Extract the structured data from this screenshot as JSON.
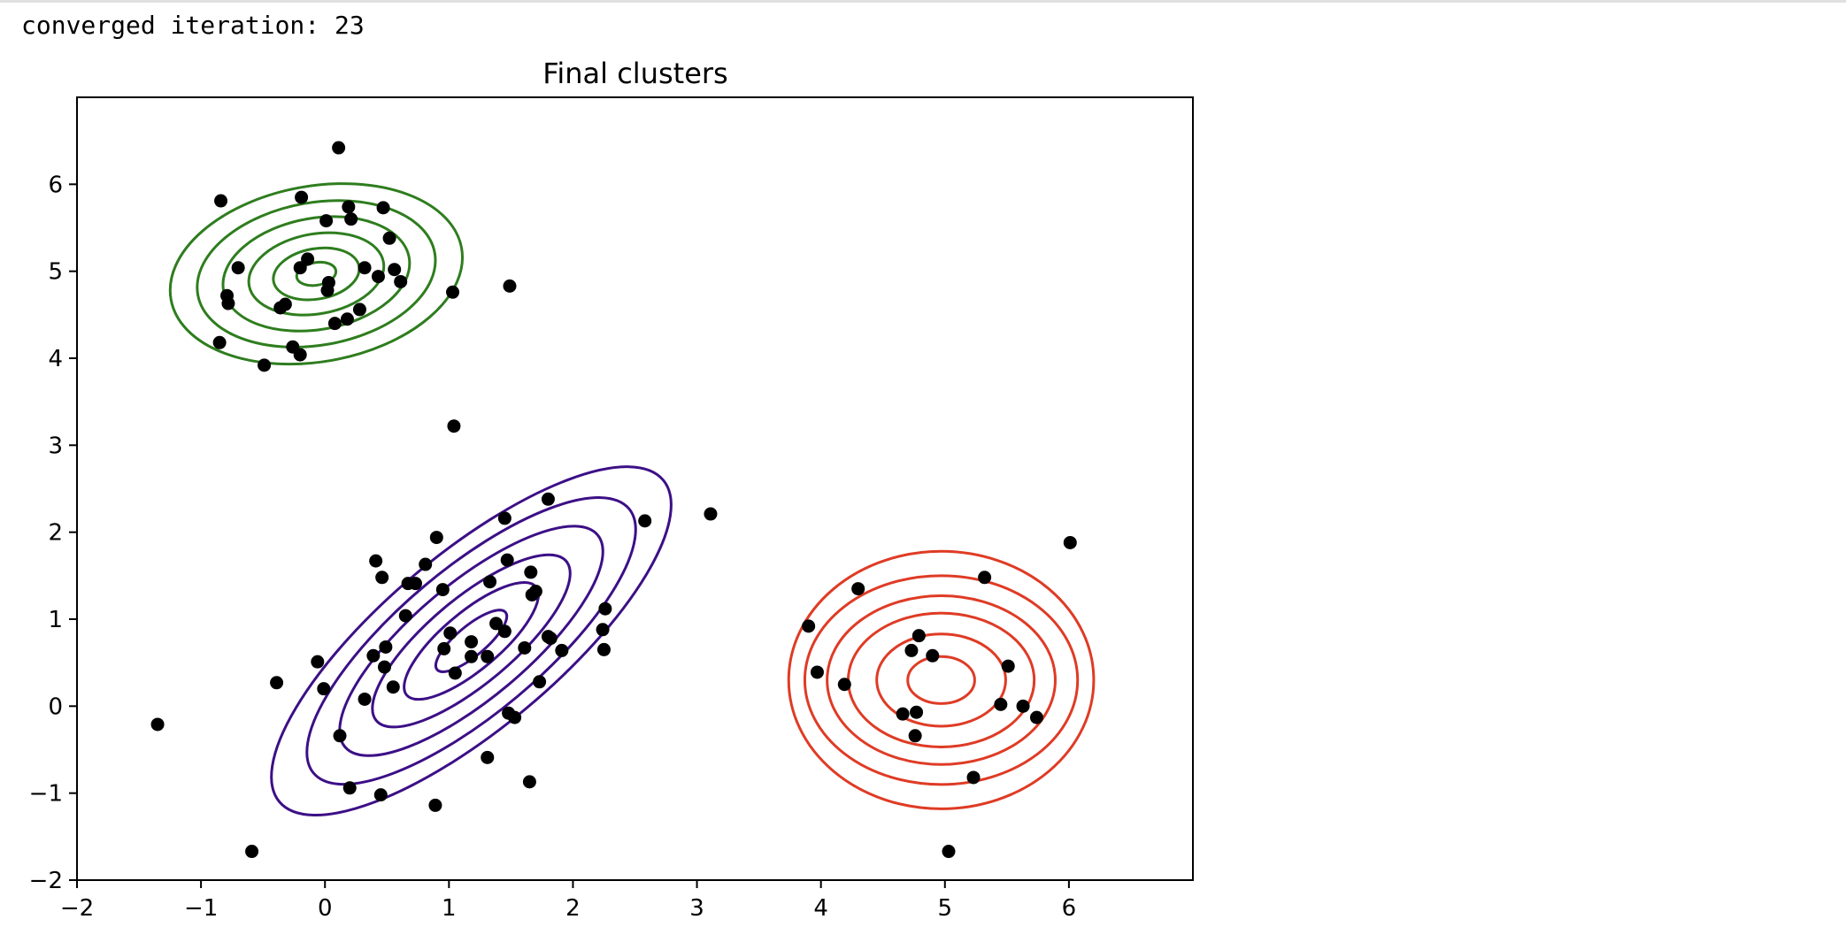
{
  "output": {
    "text": "converged iteration: 23"
  },
  "chart_data": {
    "type": "scatter",
    "title": "Final clusters",
    "xlabel": "",
    "ylabel": "",
    "xlim": [
      -2,
      7
    ],
    "ylim": [
      -2,
      7
    ],
    "xticks": [
      -2,
      -1,
      0,
      1,
      2,
      3,
      4,
      5,
      6
    ],
    "yticks": [
      -2,
      -1,
      0,
      1,
      2,
      3,
      4,
      5,
      6
    ],
    "xtick_labels": [
      "−2",
      "−1",
      "0",
      "1",
      "2",
      "3",
      "4",
      "5",
      "6"
    ],
    "ytick_labels": [
      "−2",
      "−1",
      "0",
      "1",
      "2",
      "3",
      "4",
      "5",
      "6"
    ],
    "grid": false,
    "points": [
      [
        0.11,
        6.42
      ],
      [
        -0.84,
        5.81
      ],
      [
        -0.19,
        5.85
      ],
      [
        0.19,
        5.74
      ],
      [
        0.47,
        5.73
      ],
      [
        0.01,
        5.58
      ],
      [
        0.21,
        5.6
      ],
      [
        0.52,
        5.38
      ],
      [
        -0.7,
        5.04
      ],
      [
        -0.14,
        5.14
      ],
      [
        -0.2,
        5.04
      ],
      [
        0.32,
        5.04
      ],
      [
        0.56,
        5.02
      ],
      [
        0.43,
        4.94
      ],
      [
        0.61,
        4.88
      ],
      [
        0.03,
        4.87
      ],
      [
        0.02,
        4.78
      ],
      [
        -0.79,
        4.72
      ],
      [
        -0.78,
        4.63
      ],
      [
        -0.32,
        4.62
      ],
      [
        -0.36,
        4.58
      ],
      [
        0.28,
        4.56
      ],
      [
        0.18,
        4.45
      ],
      [
        0.08,
        4.4
      ],
      [
        1.03,
        4.76
      ],
      [
        1.49,
        4.83
      ],
      [
        -0.85,
        4.18
      ],
      [
        -0.26,
        4.13
      ],
      [
        -0.2,
        4.04
      ],
      [
        -0.49,
        3.92
      ],
      [
        1.04,
        3.22
      ],
      [
        3.11,
        2.21
      ],
      [
        1.8,
        2.38
      ],
      [
        2.58,
        2.13
      ],
      [
        1.45,
        2.16
      ],
      [
        0.9,
        1.94
      ],
      [
        0.41,
        1.67
      ],
      [
        1.47,
        1.68
      ],
      [
        0.81,
        1.63
      ],
      [
        1.66,
        1.54
      ],
      [
        0.46,
        1.48
      ],
      [
        0.67,
        1.41
      ],
      [
        0.73,
        1.41
      ],
      [
        1.33,
        1.43
      ],
      [
        0.95,
        1.34
      ],
      [
        1.7,
        1.32
      ],
      [
        1.67,
        1.28
      ],
      [
        2.26,
        1.12
      ],
      [
        0.65,
        1.04
      ],
      [
        1.38,
        0.95
      ],
      [
        1.45,
        0.86
      ],
      [
        2.24,
        0.88
      ],
      [
        1.01,
        0.84
      ],
      [
        1.8,
        0.8
      ],
      [
        1.82,
        0.78
      ],
      [
        1.18,
        0.74
      ],
      [
        0.49,
        0.68
      ],
      [
        0.96,
        0.66
      ],
      [
        1.61,
        0.67
      ],
      [
        1.91,
        0.64
      ],
      [
        2.25,
        0.65
      ],
      [
        0.39,
        0.58
      ],
      [
        1.18,
        0.57
      ],
      [
        1.31,
        0.57
      ],
      [
        -0.06,
        0.51
      ],
      [
        0.48,
        0.45
      ],
      [
        1.05,
        0.38
      ],
      [
        -0.39,
        0.27
      ],
      [
        1.73,
        0.28
      ],
      [
        0.55,
        0.22
      ],
      [
        -0.01,
        0.2
      ],
      [
        0.32,
        0.08
      ],
      [
        1.48,
        -0.08
      ],
      [
        1.53,
        -0.13
      ],
      [
        0.12,
        -0.34
      ],
      [
        1.31,
        -0.59
      ],
      [
        1.65,
        -0.87
      ],
      [
        0.2,
        -0.94
      ],
      [
        0.45,
        -1.02
      ],
      [
        0.89,
        -1.14
      ],
      [
        -0.59,
        -1.67
      ],
      [
        -1.35,
        -0.21
      ],
      [
        6.01,
        1.88
      ],
      [
        5.32,
        1.48
      ],
      [
        4.3,
        1.35
      ],
      [
        3.9,
        0.92
      ],
      [
        4.79,
        0.81
      ],
      [
        4.73,
        0.64
      ],
      [
        4.9,
        0.58
      ],
      [
        5.51,
        0.46
      ],
      [
        3.97,
        0.39
      ],
      [
        4.19,
        0.25
      ],
      [
        5.45,
        0.02
      ],
      [
        5.63,
        0.0
      ],
      [
        4.66,
        -0.09
      ],
      [
        4.77,
        -0.07
      ],
      [
        5.74,
        -0.13
      ],
      [
        4.76,
        -0.34
      ],
      [
        5.23,
        -0.82
      ],
      [
        5.03,
        -1.67
      ]
    ],
    "clusters": [
      {
        "color": "#2e7d1e",
        "center": [
          -0.07,
          4.97
        ],
        "rx": [
          0.16,
          0.35,
          0.55,
          0.76,
          0.97,
          1.19
        ],
        "ry": [
          0.13,
          0.29,
          0.46,
          0.64,
          0.82,
          1.01
        ],
        "rotation": 10
      },
      {
        "color": "#3c0f86",
        "center": [
          1.18,
          0.75
        ],
        "rx": [
          0.36,
          0.68,
          1.0,
          1.33,
          1.66,
          2.02
        ],
        "ry": [
          0.17,
          0.33,
          0.49,
          0.66,
          0.83,
          1.0
        ],
        "rotation": 40
      },
      {
        "color": "#df3b25",
        "center": [
          4.97,
          0.3
        ],
        "rx": [
          0.27,
          0.52,
          0.75,
          0.92,
          1.1,
          1.23
        ],
        "ry": [
          0.27,
          0.53,
          0.77,
          0.97,
          1.2,
          1.48
        ],
        "rotation": 0
      }
    ]
  }
}
